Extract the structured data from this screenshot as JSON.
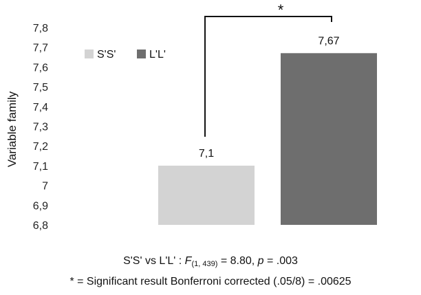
{
  "chart_data": {
    "type": "bar",
    "categories": [
      "S'S'",
      "L'L'"
    ],
    "values": [
      7.1,
      7.67
    ],
    "value_labels": [
      "7,1",
      "7,67"
    ],
    "colors": [
      "#d3d3d3",
      "#6e6e6e"
    ],
    "ylabel": "Variable family",
    "ylim": [
      6.8,
      7.8
    ],
    "yticks": [
      "6,8",
      "6,9",
      "7",
      "7,1",
      "7,2",
      "7,3",
      "7,4",
      "7,5",
      "7,6",
      "7,7",
      "7,8"
    ],
    "legend": [
      {
        "name": "S'S'",
        "color": "#d3d3d3"
      },
      {
        "name": "L'L'",
        "color": "#6e6e6e"
      }
    ],
    "legend_position": "top-left",
    "grid": false,
    "significance_marker": "*"
  },
  "stats": {
    "prefix": "S'S' vs L'L' : ",
    "f_symbol": "F",
    "f_df": "(1, 439)",
    "f_value": " = 8.80, ",
    "p_symbol": "p",
    "p_value": " = .003"
  },
  "footnote": "* = Significant result Bonferroni corrected (.05/8) = .00625"
}
